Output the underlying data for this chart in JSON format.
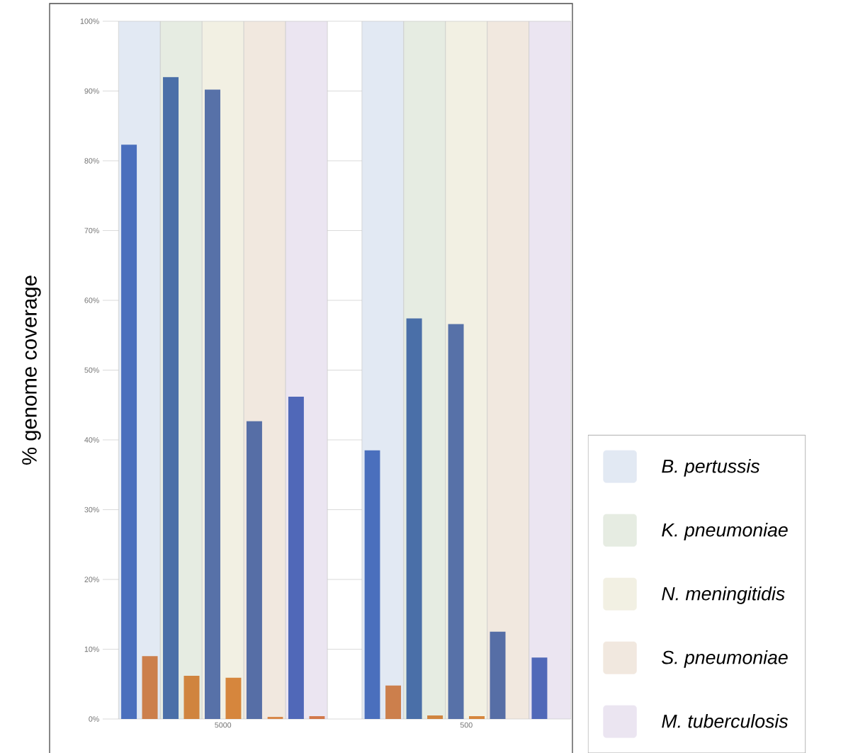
{
  "chart_data": {
    "type": "bar",
    "ylabel": "% genome coverage",
    "categories": [
      "5000",
      "500"
    ],
    "series": [
      {
        "name": "B. pertussis",
        "color": "#e2e9f3",
        "values": [
          100,
          100
        ]
      },
      {
        "name": "K. pneumoniae",
        "color": "#e6ece2",
        "values": [
          100,
          100
        ]
      },
      {
        "name": "N. meningitidis",
        "color": "#f2f0e3",
        "values": [
          100,
          100
        ]
      },
      {
        "name": "S. pneumoniae",
        "color": "#f1e8df",
        "values": [
          100,
          100
        ]
      },
      {
        "name": "M. tuberculosis",
        "color": "#ebe5f1",
        "values": [
          100,
          100
        ]
      },
      {
        "color": "#4a6fbd",
        "values": [
          82.3,
          38.5
        ]
      },
      {
        "color": "#cc7f4c",
        "values": [
          9.0,
          4.8
        ]
      },
      {
        "color": "#4a6fa8",
        "values": [
          92.0,
          57.4
        ]
      },
      {
        "color": "#d0843e",
        "values": [
          6.2,
          0.5
        ]
      },
      {
        "color": "#5771a8",
        "values": [
          90.2,
          56.6
        ]
      },
      {
        "color": "#d6863d",
        "values": [
          5.9,
          0.4
        ]
      },
      {
        "color": "#566ea6",
        "values": [
          42.7,
          12.5
        ]
      },
      {
        "color": "#d8884a",
        "values": [
          0.3,
          null
        ]
      },
      {
        "color": "#5068b8",
        "values": [
          46.2,
          8.8
        ]
      },
      {
        "color": "#d2784a",
        "values": [
          0.4,
          null
        ]
      }
    ],
    "ylim": [
      0,
      100
    ],
    "yticks": [
      {
        "value": 0,
        "label": "0%"
      },
      {
        "value": 10,
        "label": "10%"
      },
      {
        "value": 20,
        "label": "20%"
      },
      {
        "value": 30,
        "label": "30%"
      },
      {
        "value": 40,
        "label": "40%"
      },
      {
        "value": 50,
        "label": "50%"
      },
      {
        "value": 60,
        "label": "60%"
      },
      {
        "value": 70,
        "label": "70%"
      },
      {
        "value": 80,
        "label": "80%"
      },
      {
        "value": 90,
        "label": "90%"
      },
      {
        "value": 100,
        "label": "100%"
      }
    ],
    "grid": "y",
    "legend": "right"
  }
}
